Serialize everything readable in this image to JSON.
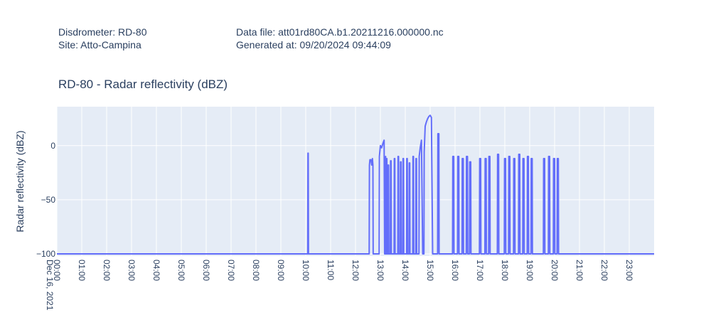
{
  "header": {
    "disdrometer": "Disdrometer: RD-80",
    "site": "Site: Atto-Campina",
    "data_file": "Data file: att01rd80CA.b1.20211216.000000.nc",
    "generated": "Generated at: 09/20/2024 09:44:09"
  },
  "chart_data": {
    "type": "line",
    "title": "RD-80 - Radar reflectivity  (dBZ)",
    "xlabel": "",
    "ylabel": "Radar reflectivity  (dBZ)",
    "xlim": [
      0,
      24
    ],
    "ylim": [
      -102,
      36
    ],
    "yticks": [
      0,
      -50,
      -100
    ],
    "ytick_labels": [
      "0",
      "−50",
      "−100"
    ],
    "xticks": [
      0,
      1,
      2,
      3,
      4,
      5,
      6,
      7,
      8,
      9,
      10,
      11,
      12,
      13,
      14,
      15,
      16,
      17,
      18,
      19,
      20,
      21,
      22,
      23
    ],
    "xtick_labels": [
      "00:00",
      "01:00",
      "02:00",
      "03:00",
      "04:00",
      "05:00",
      "06:00",
      "07:00",
      "08:00",
      "09:00",
      "10:00",
      "11:00",
      "12:00",
      "13:00",
      "14:00",
      "15:00",
      "16:00",
      "17:00",
      "18:00",
      "19:00",
      "20:00",
      "21:00",
      "22:00",
      "23:00"
    ],
    "x_date_label": "Dec 16, 2021",
    "grid": true,
    "line_color": "#636efa",
    "series": [
      {
        "x": [
          0,
          10.08,
          10.09,
          10.1,
          10.11,
          10.12,
          12.55,
          12.56,
          12.58,
          12.62,
          12.65,
          12.68,
          12.7,
          12.71,
          12.72,
          12.95,
          12.96,
          13.0,
          13.05,
          13.1,
          13.15,
          13.17,
          13.18,
          13.2,
          13.21,
          13.22,
          13.25,
          13.26,
          13.27,
          13.3,
          13.31,
          13.33,
          13.34,
          13.4,
          13.41,
          13.43,
          13.44,
          13.55,
          13.56,
          13.58,
          13.59,
          13.7,
          13.71,
          13.73,
          13.74,
          13.8,
          13.81,
          13.83,
          13.84,
          13.9,
          13.91,
          13.93,
          13.94,
          14.05,
          14.06,
          14.08,
          14.09,
          14.15,
          14.16,
          14.18,
          14.19,
          14.3,
          14.31,
          14.33,
          14.34,
          14.42,
          14.43,
          14.45,
          14.46,
          14.55,
          14.56,
          14.6,
          14.65,
          14.7,
          14.71,
          14.75,
          14.76,
          14.8,
          14.85,
          14.9,
          14.95,
          15.0,
          15.05,
          15.1,
          15.11,
          15.3,
          15.31,
          15.35,
          15.36,
          15.9,
          15.91,
          15.95,
          15.96,
          16.1,
          16.11,
          16.15,
          16.16,
          16.28,
          16.29,
          16.33,
          16.34,
          16.45,
          16.46,
          16.5,
          16.51,
          16.58,
          16.59,
          16.63,
          16.64,
          16.98,
          16.99,
          17.03,
          17.04,
          17.2,
          17.21,
          17.25,
          17.26,
          17.35,
          17.36,
          17.4,
          17.41,
          17.7,
          17.71,
          17.75,
          17.76,
          17.98,
          17.99,
          18.03,
          18.04,
          18.15,
          18.16,
          18.2,
          18.21,
          18.35,
          18.36,
          18.4,
          18.41,
          18.55,
          18.56,
          18.6,
          18.61,
          18.72,
          18.73,
          18.77,
          18.78,
          18.9,
          18.91,
          18.95,
          18.96,
          19.05,
          19.06,
          19.1,
          19.11,
          19.55,
          19.56,
          19.6,
          19.61,
          19.75,
          19.76,
          19.8,
          19.81,
          19.95,
          19.96,
          20.0,
          20.01,
          20.1,
          20.11,
          20.15,
          20.16,
          24
        ],
        "y": [
          -100,
          -100,
          -7,
          -7,
          -100,
          -100,
          -100,
          -18,
          -13,
          -13,
          -18,
          -12,
          -18,
          -100,
          -100,
          -100,
          -10,
          0,
          -2,
          2,
          5,
          -100,
          -100,
          -100,
          -10,
          -100,
          -100,
          -12,
          -100,
          -100,
          -18,
          -18,
          -100,
          -100,
          -14,
          -14,
          -100,
          -100,
          -12,
          -12,
          -100,
          -100,
          -10,
          -10,
          -100,
          -100,
          -15,
          -15,
          -100,
          -100,
          -12,
          -12,
          -100,
          -100,
          -12,
          -12,
          -100,
          -100,
          -16,
          -16,
          -100,
          -100,
          -10,
          -10,
          -100,
          -100,
          -12,
          -12,
          -100,
          -100,
          -10,
          -2,
          5,
          -100,
          -100,
          -100,
          -6,
          18,
          22,
          25,
          27,
          28,
          26,
          -100,
          -100,
          -100,
          11,
          11,
          -100,
          -100,
          -10,
          -10,
          -100,
          -100,
          -10,
          -10,
          -100,
          -100,
          -12,
          -12,
          -100,
          -100,
          -10,
          -10,
          -100,
          -100,
          -15,
          -15,
          -100,
          -100,
          -12,
          -12,
          -100,
          -100,
          -12,
          -12,
          -100,
          -100,
          -10,
          -10,
          -100,
          -100,
          -8,
          -8,
          -100,
          -100,
          -12,
          -12,
          -100,
          -100,
          -10,
          -10,
          -100,
          -100,
          -12,
          -12,
          -100,
          -100,
          -8,
          -8,
          -100,
          -100,
          -12,
          -12,
          -100,
          -100,
          -10,
          -10,
          -100,
          -100,
          -12,
          -12,
          -100,
          -100,
          -12,
          -12,
          -100,
          -100,
          -10,
          -10,
          -100,
          -100,
          -12,
          -12,
          -100,
          -100,
          -12,
          -12,
          -100,
          -100
        ]
      }
    ]
  }
}
